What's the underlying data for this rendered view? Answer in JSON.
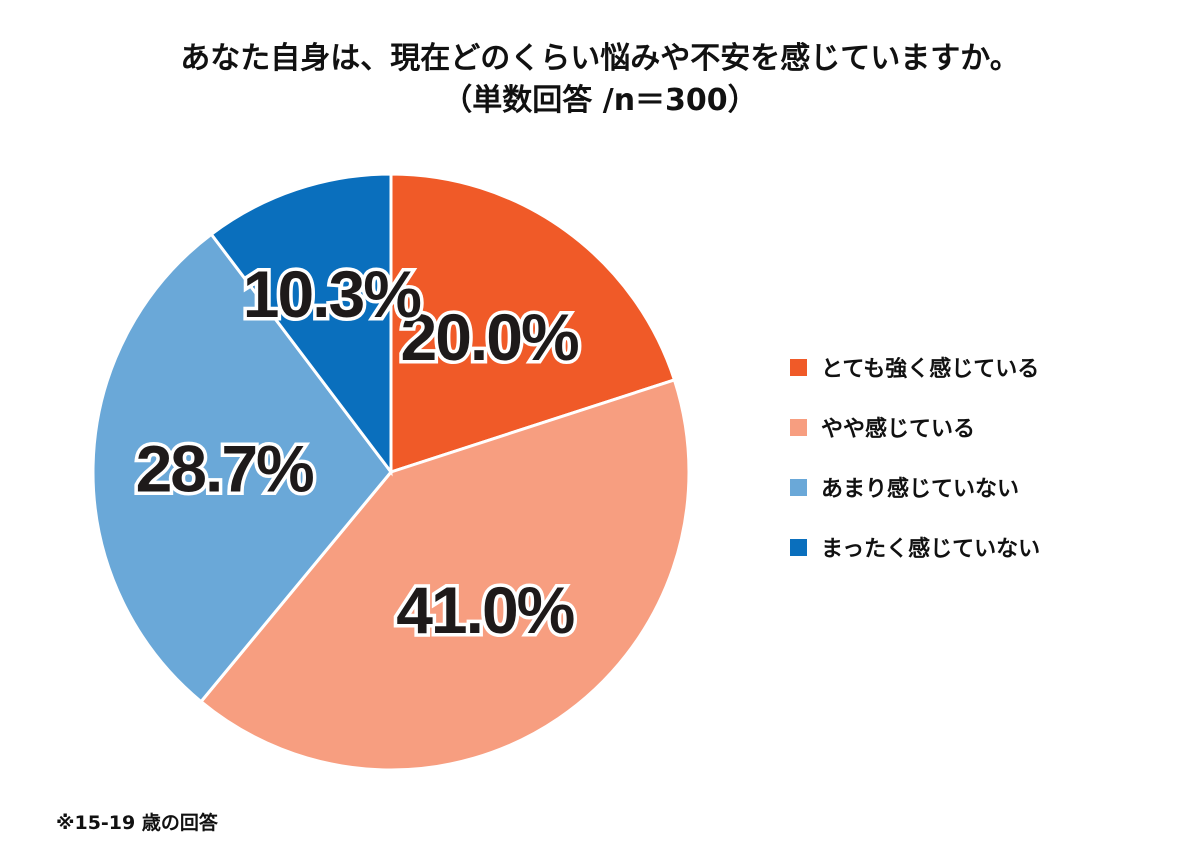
{
  "title": {
    "line1": "あなた自身は、現在どのくらい悩みや不安を感じていますか。",
    "line2": "（単数回答 /n＝300）"
  },
  "footnote": "※15-19 歳の回答",
  "chart_data": {
    "type": "pie",
    "categories": [
      "とても強く感じている",
      "やや感じている",
      "あまり感じていない",
      "まったく感じていない"
    ],
    "values": [
      20.0,
      41.0,
      28.7,
      10.3
    ],
    "labels": [
      "20.0%",
      "41.0%",
      "28.7%",
      "10.3%"
    ],
    "colors": [
      "#f05a28",
      "#f79e80",
      "#6aa8d8",
      "#0a6fbd"
    ],
    "start": "12 o'clock, clockwise",
    "legend": "right"
  }
}
